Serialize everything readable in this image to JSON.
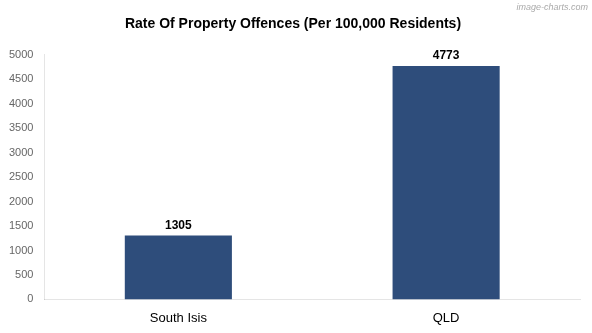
{
  "chart_data": {
    "type": "bar",
    "title": "Rate Of Property Offences (Per 100,000 Residents)",
    "categories": [
      "South Isis",
      "QLD"
    ],
    "values": [
      1305,
      4773
    ],
    "color": "#2e4d7b",
    "ylim": [
      0,
      5000
    ],
    "yticks": [
      0,
      500,
      1000,
      1500,
      2000,
      2500,
      3000,
      3500,
      4000,
      4500,
      5000
    ],
    "grid": false,
    "data_labels": true,
    "annotation": "image-charts.com"
  }
}
